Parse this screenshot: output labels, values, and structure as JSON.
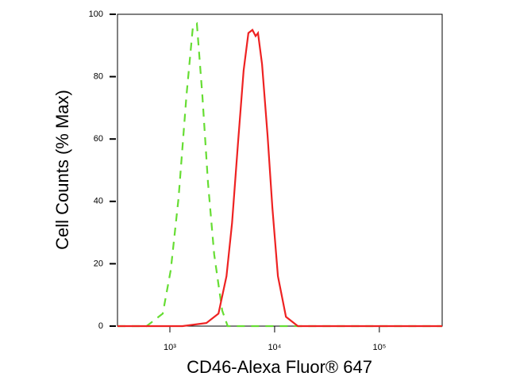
{
  "chart_data": {
    "type": "line",
    "xlabel": "CD46-Alexa Fluor® 647",
    "ylabel": "Cell Counts (% Max)",
    "xscale": "log",
    "xlim": [
      316,
      398000
    ],
    "ylim": [
      0,
      100
    ],
    "xticks": [
      {
        "value": 1000,
        "label": "10³"
      },
      {
        "value": 10000,
        "label": "10⁴"
      },
      {
        "value": 100000,
        "label": "10⁵"
      }
    ],
    "yticks": [
      0,
      20,
      40,
      60,
      80,
      100
    ],
    "series": [
      {
        "color": "#66dd33",
        "dash": "10,8",
        "x": [
          316,
          600,
          855,
          1020,
          1210,
          1440,
          1660,
          1810,
          2040,
          2310,
          2650,
          3160,
          3560,
          398000
        ],
        "values": [
          0,
          0,
          4,
          18,
          41,
          74,
          96,
          97,
          74,
          46,
          23,
          5,
          0,
          0
        ]
      },
      {
        "color": "#ee2222",
        "x": [
          316,
          1320,
          2230,
          2910,
          3470,
          3920,
          4480,
          5060,
          5620,
          6140,
          6590,
          6940,
          7580,
          8570,
          9510,
          10760,
          12820,
          16670,
          398000
        ],
        "values": [
          0,
          0,
          1,
          4,
          16,
          33,
          59,
          82,
          94,
          95,
          93,
          94,
          84,
          61,
          38,
          16,
          3,
          0,
          0
        ]
      }
    ]
  }
}
